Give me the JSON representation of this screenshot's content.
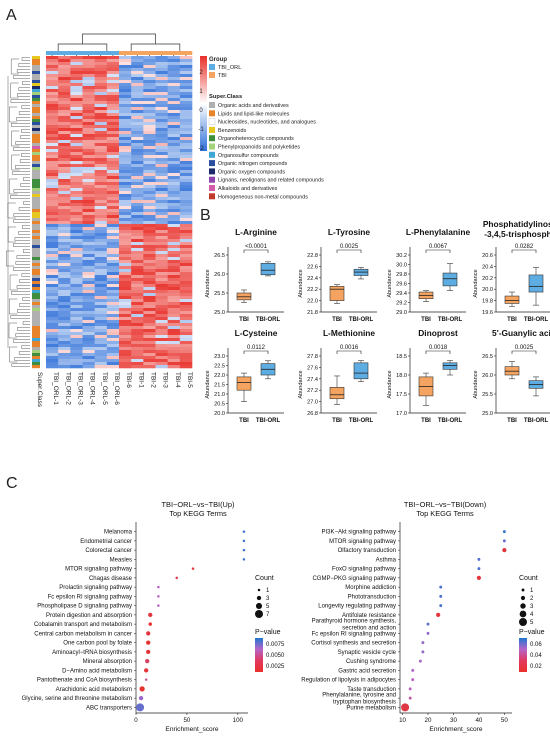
{
  "panels": {
    "a": "A",
    "b": "B",
    "c": "C"
  },
  "colors": {
    "tbi": "#F4A460",
    "tbi_orl": "#5DADE2",
    "box_orange": "#F4A460",
    "box_blue": "#5DADE2",
    "heat_high": "#E8302A",
    "heat_mid": "#FFFFFF",
    "heat_low": "#2E6FD8"
  },
  "heatmap": {
    "group_legend_title": "Group",
    "group_items": [
      {
        "label": "TBI_ORL",
        "color": "#5DADE2"
      },
      {
        "label": "TBI",
        "color": "#F4A460"
      }
    ],
    "scale_ticks": [
      "2",
      "1",
      "0",
      "-1",
      "-2"
    ],
    "superclass_title": "Super.Class",
    "superclass_items": [
      {
        "label": "Organic acids and derivatives",
        "color": "#B0B0B0"
      },
      {
        "label": "Lipids and lipid-like molecules",
        "color": "#E8832A"
      },
      {
        "label": "Nucleosides, nucleotides, and analogues",
        "color": "#FFFFFF"
      },
      {
        "label": "Benzenoids",
        "color": "#E6C81E"
      },
      {
        "label": "Organoheterocyclic compounds",
        "color": "#3E8E3E"
      },
      {
        "label": "Phenylpropanoids and polyketides",
        "color": "#A5D17A"
      },
      {
        "label": "Organosulfur compounds",
        "color": "#3FA7D6"
      },
      {
        "label": "Organic nitrogen compounds",
        "color": "#2A4F9E"
      },
      {
        "label": "Organic oxygen compounds",
        "color": "#1A2A6C"
      },
      {
        "label": "Lignans, neolignans and related compounds",
        "color": "#8E44AD"
      },
      {
        "label": "Alkaloids and derivatives",
        "color": "#D35DA8"
      },
      {
        "label": "Homogeneous non-metal compounds",
        "color": "#C0392B"
      }
    ],
    "row_label": "Super.Class",
    "samples": [
      "TBI_ORL-1",
      "TBI_ORL-2",
      "TBI_ORL-3",
      "TBI_ORL-4",
      "TBI_ORL-5",
      "TBI_ORL-6",
      "TBI-6",
      "TBI-1",
      "TBI-2",
      "TBI-3",
      "TBI-4",
      "TBI-5"
    ]
  },
  "chart_data": [
    {
      "type": "box",
      "title": "L-Arginine",
      "pvalue": "<0.0001",
      "ylabel": "Abundance",
      "categories": [
        "TBI",
        "TBI-ORL"
      ],
      "yticks": [
        "25.0",
        "25.5",
        "26.0",
        "26.5"
      ],
      "ylim": [
        25.0,
        26.5
      ],
      "boxes": [
        {
          "min": 25.25,
          "q1": 25.32,
          "median": 25.4,
          "q3": 25.5,
          "max": 25.58
        },
        {
          "min": 25.95,
          "q1": 25.98,
          "median": 26.1,
          "q3": 26.28,
          "max": 26.32
        }
      ]
    },
    {
      "type": "box",
      "title": "L-Tyrosine",
      "pvalue": "0.0025",
      "ylabel": "Abundance",
      "categories": [
        "TBI",
        "TBI-ORL"
      ],
      "yticks": [
        "21.8",
        "22.0",
        "22.2",
        "22.4",
        "22.6",
        "22.8"
      ],
      "ylim": [
        21.8,
        22.8
      ],
      "boxes": [
        {
          "min": 21.95,
          "q1": 22.0,
          "median": 22.2,
          "q3": 22.25,
          "max": 22.28
        },
        {
          "min": 22.38,
          "q1": 22.44,
          "median": 22.5,
          "q3": 22.55,
          "max": 22.58
        }
      ]
    },
    {
      "type": "box",
      "title": "L-Phenylalanine",
      "pvalue": "0.0067",
      "ylabel": "Abundance",
      "categories": [
        "TBI",
        "TBI-ORL"
      ],
      "yticks": [
        "29.0",
        "29.2",
        "29.4",
        "29.6",
        "29.8",
        "30.0",
        "30.2"
      ],
      "ylim": [
        29.0,
        30.2
      ],
      "boxes": [
        {
          "min": 29.22,
          "q1": 29.28,
          "median": 29.35,
          "q3": 29.42,
          "max": 29.45
        },
        {
          "min": 29.45,
          "q1": 29.55,
          "median": 29.7,
          "q3": 29.82,
          "max": 30.02
        }
      ]
    },
    {
      "type": "box",
      "title": "Phosphatidylinositol\n-3,4,5-trisphosphate",
      "pvalue": "0.0282",
      "ylabel": "Abundance",
      "categories": [
        "TBI",
        "TBI-ORL"
      ],
      "yticks": [
        "19.6",
        "19.8",
        "20.0",
        "20.2",
        "20.4",
        "20.6"
      ],
      "ylim": [
        19.6,
        20.6
      ],
      "boxes": [
        {
          "min": 19.7,
          "q1": 19.75,
          "median": 19.8,
          "q3": 19.88,
          "max": 19.95
        },
        {
          "min": 19.72,
          "q1": 19.95,
          "median": 20.05,
          "q3": 20.25,
          "max": 20.38
        }
      ]
    },
    {
      "type": "box",
      "title": "L-Cysteine",
      "pvalue": "0.0112",
      "ylabel": "Abundance",
      "categories": [
        "TBI",
        "TBI-ORL"
      ],
      "yticks": [
        "20.0",
        "20.5",
        "21.0",
        "21.5",
        "22.0",
        "22.5",
        "23.0"
      ],
      "ylim": [
        20.0,
        23.0
      ],
      "boxes": [
        {
          "min": 20.6,
          "q1": 21.2,
          "median": 21.6,
          "q3": 21.9,
          "max": 22.1
        },
        {
          "min": 21.8,
          "q1": 22.0,
          "median": 22.3,
          "q3": 22.6,
          "max": 22.75
        }
      ]
    },
    {
      "type": "box",
      "title": "L-Methionine",
      "pvalue": "0.0016",
      "ylabel": "Abundance",
      "categories": [
        "TBI",
        "TBI-ORL"
      ],
      "yticks": [
        "26.8",
        "27.0",
        "27.2",
        "27.4",
        "27.6",
        "27.8"
      ],
      "ylim": [
        26.8,
        27.8
      ],
      "boxes": [
        {
          "min": 26.95,
          "q1": 27.05,
          "median": 27.12,
          "q3": 27.25,
          "max": 27.45
        },
        {
          "min": 27.35,
          "q1": 27.4,
          "median": 27.5,
          "q3": 27.68,
          "max": 27.72
        }
      ]
    },
    {
      "type": "box",
      "title": "Dinoprost",
      "pvalue": "0.0018",
      "ylabel": "Abundance",
      "categories": [
        "TBI",
        "TBI-ORL"
      ],
      "yticks": [
        "17.0",
        "17.5",
        "18.0",
        "18.5"
      ],
      "ylim": [
        17.0,
        18.5
      ],
      "boxes": [
        {
          "min": 17.2,
          "q1": 17.45,
          "median": 17.7,
          "q3": 17.95,
          "max": 18.05
        },
        {
          "min": 18.0,
          "q1": 18.15,
          "median": 18.25,
          "q3": 18.32,
          "max": 18.38
        }
      ]
    },
    {
      "type": "box",
      "title": "5'-Guanylic acid",
      "pvalue": "0.0025",
      "ylabel": "Abundance",
      "categories": [
        "TBI",
        "TBI-ORL"
      ],
      "yticks": [
        "25.0",
        "25.5",
        "26.0",
        "26.5"
      ],
      "ylim": [
        25.0,
        26.5
      ],
      "boxes": [
        {
          "min": 25.9,
          "q1": 26.0,
          "median": 26.1,
          "q3": 26.22,
          "max": 26.35
        },
        {
          "min": 25.45,
          "q1": 25.65,
          "median": 25.75,
          "q3": 25.85,
          "max": 25.95
        }
      ]
    },
    {
      "type": "scatter",
      "title": "TBI−ORL−vs−TBI(Up)",
      "subtitle": "Top KEGG Terms",
      "xlabel": "Enrichment_score",
      "xticks": [
        0,
        50,
        100
      ],
      "xlim": [
        0,
        110
      ],
      "count_title": "Count",
      "count_levels": [
        1,
        3,
        5,
        7
      ],
      "p_title": "P−value",
      "p_ticks": [
        "0.0075",
        "0.0050",
        "0.0025"
      ],
      "p_range": [
        0.001,
        0.0095
      ],
      "terms": [
        "Melanoma",
        "Endometrial cancer",
        "Colorectal cancer",
        "Measles",
        "MTOR signaling pathway",
        "Chagas disease",
        "Prolactin signaling pathway",
        "Fc epsilon RI signaling pathway",
        "Phospholipase D signaling pathway",
        "Protein digestion and absorption",
        "Cobalamin transport and metabolism",
        "Central carbon metabolism in cancer",
        "One carbon pool by folate",
        "Aminoacyl−tRNA biosynthesis",
        "Mineral absorption",
        "D−Amino acid metabolism",
        "Pantothenate and CoA biosynthesis",
        "Arachidonic acid metabolism",
        "Glycine, serine and threonine metabolism",
        "ABC transporters"
      ],
      "x": [
        106,
        106,
        106,
        106,
        56,
        40,
        22,
        22,
        22,
        14,
        14,
        12,
        12,
        12,
        11,
        10,
        10,
        6,
        5,
        4
      ],
      "counts": [
        1,
        1,
        1,
        1,
        1,
        1,
        1,
        1,
        1,
        3,
        2,
        3,
        3,
        3,
        3,
        3,
        1,
        4,
        3,
        7
      ],
      "pvalues": [
        0.0085,
        0.0085,
        0.0085,
        0.0085,
        0.0015,
        0.0018,
        0.005,
        0.005,
        0.005,
        0.0015,
        0.0012,
        0.0015,
        0.0012,
        0.0015,
        0.0025,
        0.0015,
        0.004,
        0.0012,
        0.006,
        0.0075
      ]
    },
    {
      "type": "scatter",
      "title": "TBI−ORL−vs−TBI(Down)",
      "subtitle": "Top KEGG Terms",
      "xlabel": "Enrichment_score",
      "xticks": [
        10,
        20,
        30,
        40,
        50
      ],
      "xlim": [
        9,
        53
      ],
      "count_title": "Count",
      "count_levels": [
        1,
        2,
        3,
        4,
        5
      ],
      "p_title": "P−value",
      "p_ticks": [
        "0.06",
        "0.04",
        "0.02"
      ],
      "p_range": [
        0.005,
        0.07
      ],
      "terms": [
        "PI3K−Akt signaling pathway",
        "MTOR signaling pathway",
        "Olfactory transduction",
        "Asthma",
        "FoxO signaling pathway",
        "CGMP−PKG signaling pathway",
        "Morphine addiction",
        "Phototransduction",
        "Longevity regulating pathway",
        "Antifolate resistance",
        "Parathyroid hormone synthesis,\nsecretion and action",
        "Fc epsilon RI signaling pathway",
        "Cortisol synthesis and secretion",
        "Synaptic vesicle cycle",
        "Cushing syndrome",
        "Gastric acid secretion",
        "Regulation of lipolysis in adipocytes",
        "Taste transduction",
        "Phenylalanine, tyrosine and\ntryptophan biosynthesis",
        "Purine metabolism"
      ],
      "x": [
        50,
        50,
        50,
        40,
        40,
        40,
        25,
        25,
        25,
        24,
        20,
        20,
        18,
        18,
        17,
        14,
        14,
        13,
        13,
        11
      ],
      "counts": [
        1,
        1,
        2,
        1,
        1,
        2,
        1,
        1,
        1,
        2,
        1,
        1,
        1,
        1,
        1,
        1,
        1,
        1,
        1,
        5
      ],
      "pvalues": [
        0.065,
        0.055,
        0.008,
        0.06,
        0.06,
        0.008,
        0.06,
        0.06,
        0.06,
        0.008,
        0.055,
        0.045,
        0.045,
        0.045,
        0.04,
        0.04,
        0.035,
        0.035,
        0.03,
        0.01
      ]
    }
  ]
}
